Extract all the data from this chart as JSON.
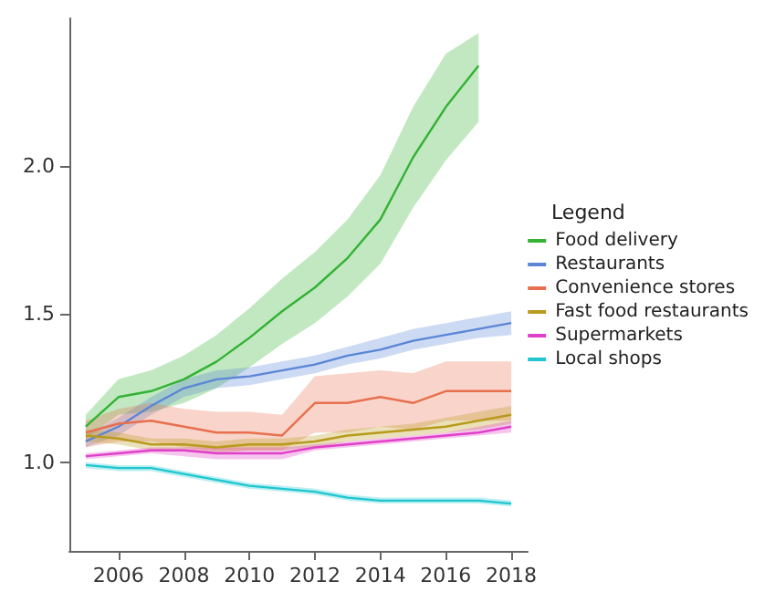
{
  "chart_data": {
    "type": "line",
    "legend_title": "Legend",
    "legend": "right",
    "grid": false,
    "marker": "none",
    "line_style": "solid",
    "xlim": [
      2004.5,
      2018.5
    ],
    "xticks": [
      2006,
      2008,
      2010,
      2012,
      2014,
      2016,
      2018
    ],
    "ylim": [
      0.7,
      2.5
    ],
    "yticks": [
      {
        "value": 1,
        "label": "1.0"
      },
      {
        "value": 1.5,
        "label": "1.5"
      },
      {
        "value": 2,
        "label": "2.0"
      }
    ],
    "series": [
      {
        "name": "Food delivery",
        "color": "#33b233",
        "x": [
          2005,
          2006,
          2007,
          2008,
          2009,
          2010,
          2011,
          2012,
          2013,
          2014,
          2015,
          2016,
          2017
        ],
        "values": [
          1.12,
          1.22,
          1.24,
          1.28,
          1.34,
          1.42,
          1.51,
          1.59,
          1.69,
          1.82,
          2.03,
          2.2,
          2.34
        ],
        "lower": [
          1.08,
          1.16,
          1.17,
          1.2,
          1.25,
          1.32,
          1.4,
          1.47,
          1.56,
          1.67,
          1.86,
          2.02,
          2.15
        ],
        "upper": [
          1.16,
          1.28,
          1.31,
          1.36,
          1.43,
          1.52,
          1.62,
          1.71,
          1.82,
          1.97,
          2.2,
          2.38,
          2.45
        ]
      },
      {
        "name": "Restaurants",
        "color": "#5a86d6",
        "x": [
          2005,
          2006,
          2007,
          2008,
          2009,
          2010,
          2011,
          2012,
          2013,
          2014,
          2015,
          2016,
          2017,
          2018
        ],
        "values": [
          1.07,
          1.12,
          1.19,
          1.25,
          1.28,
          1.29,
          1.31,
          1.33,
          1.36,
          1.38,
          1.41,
          1.43,
          1.45,
          1.47
        ],
        "lower": [
          1.05,
          1.09,
          1.16,
          1.22,
          1.25,
          1.26,
          1.28,
          1.3,
          1.33,
          1.35,
          1.38,
          1.4,
          1.42,
          1.43
        ],
        "upper": [
          1.09,
          1.15,
          1.22,
          1.28,
          1.31,
          1.32,
          1.34,
          1.36,
          1.39,
          1.42,
          1.45,
          1.47,
          1.49,
          1.51
        ]
      },
      {
        "name": "Convenience stores",
        "color": "#e8704f",
        "x": [
          2005,
          2006,
          2007,
          2008,
          2009,
          2010,
          2011,
          2012,
          2013,
          2014,
          2015,
          2016,
          2017,
          2018
        ],
        "values": [
          1.1,
          1.13,
          1.14,
          1.12,
          1.1,
          1.1,
          1.09,
          1.2,
          1.2,
          1.22,
          1.2,
          1.24,
          1.24,
          1.24
        ],
        "lower": [
          1.05,
          1.07,
          1.07,
          1.05,
          1.04,
          1.04,
          1.04,
          1.1,
          1.1,
          1.12,
          1.11,
          1.14,
          1.14,
          1.14
        ],
        "upper": [
          1.14,
          1.18,
          1.2,
          1.18,
          1.17,
          1.17,
          1.16,
          1.29,
          1.3,
          1.31,
          1.3,
          1.34,
          1.34,
          1.34
        ]
      },
      {
        "name": "Fast food restaurants",
        "color": "#b89a1c",
        "x": [
          2005,
          2006,
          2007,
          2008,
          2009,
          2010,
          2011,
          2012,
          2013,
          2014,
          2015,
          2016,
          2017,
          2018
        ],
        "values": [
          1.09,
          1.08,
          1.06,
          1.06,
          1.05,
          1.06,
          1.06,
          1.07,
          1.09,
          1.1,
          1.11,
          1.12,
          1.14,
          1.16
        ],
        "lower": [
          1.07,
          1.06,
          1.04,
          1.04,
          1.03,
          1.04,
          1.04,
          1.05,
          1.07,
          1.08,
          1.09,
          1.1,
          1.11,
          1.13
        ],
        "upper": [
          1.11,
          1.1,
          1.08,
          1.08,
          1.07,
          1.08,
          1.08,
          1.09,
          1.11,
          1.12,
          1.13,
          1.15,
          1.17,
          1.19
        ]
      },
      {
        "name": "Supermarkets",
        "color": "#e040c8",
        "x": [
          2005,
          2006,
          2007,
          2008,
          2009,
          2010,
          2011,
          2012,
          2013,
          2014,
          2015,
          2016,
          2017,
          2018
        ],
        "values": [
          1.02,
          1.03,
          1.04,
          1.04,
          1.03,
          1.03,
          1.03,
          1.05,
          1.06,
          1.07,
          1.08,
          1.09,
          1.1,
          1.12
        ],
        "lower": [
          1.01,
          1.02,
          1.03,
          1.02,
          1.01,
          1.01,
          1.01,
          1.04,
          1.05,
          1.06,
          1.07,
          1.08,
          1.09,
          1.1
        ],
        "upper": [
          1.03,
          1.04,
          1.05,
          1.05,
          1.05,
          1.05,
          1.05,
          1.06,
          1.07,
          1.08,
          1.09,
          1.1,
          1.12,
          1.14
        ]
      },
      {
        "name": "Local shops",
        "color": "#1fc6cf",
        "x": [
          2005,
          2006,
          2007,
          2008,
          2009,
          2010,
          2011,
          2012,
          2013,
          2014,
          2015,
          2016,
          2017,
          2018
        ],
        "values": [
          0.99,
          0.98,
          0.98,
          0.96,
          0.94,
          0.92,
          0.91,
          0.9,
          0.88,
          0.87,
          0.87,
          0.87,
          0.87,
          0.86
        ],
        "lower": [
          0.98,
          0.97,
          0.97,
          0.95,
          0.93,
          0.91,
          0.9,
          0.89,
          0.87,
          0.86,
          0.86,
          0.86,
          0.86,
          0.85
        ],
        "upper": [
          1,
          0.99,
          0.99,
          0.97,
          0.95,
          0.93,
          0.92,
          0.91,
          0.89,
          0.88,
          0.88,
          0.88,
          0.88,
          0.87
        ]
      }
    ]
  }
}
